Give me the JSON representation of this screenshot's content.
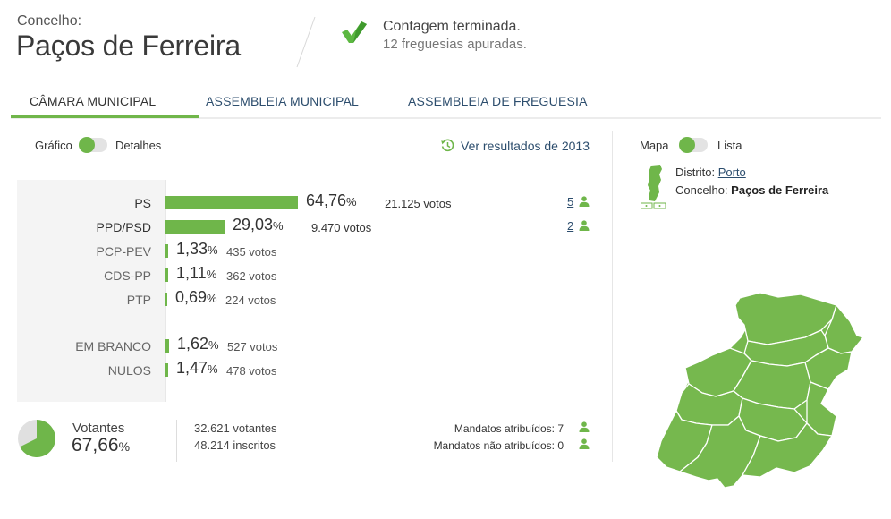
{
  "header": {
    "label": "Concelho:",
    "name": "Paços de Ferreira",
    "status_title": "Contagem terminada.",
    "status_sub": "12 freguesias apuradas."
  },
  "tabs": [
    {
      "label": "CÂMARA MUNICIPAL",
      "active": true
    },
    {
      "label": "ASSEMBLEIA MUNICIPAL",
      "active": false
    },
    {
      "label": "ASSEMBLEIA DE FREGUESIA",
      "active": false
    }
  ],
  "view_toggle": {
    "left": "Gráfico",
    "right": "Detalhes"
  },
  "prev_results": "Ver resultados de 2013",
  "results": [
    {
      "party": "PS",
      "pct": "64,76",
      "votes": "21.125 votos",
      "mandatos": "5",
      "share": 64.76
    },
    {
      "party": "PPD/PSD",
      "pct": "29,03",
      "votes": "9.470 votos",
      "mandatos": "2",
      "share": 29.03
    },
    {
      "party": "PCP-PEV",
      "pct": "1,33",
      "votes": "435 votos",
      "share": 1.33
    },
    {
      "party": "CDS-PP",
      "pct": "1,11",
      "votes": "362 votos",
      "share": 1.11
    },
    {
      "party": "PTP",
      "pct": "0,69",
      "votes": "224 votos",
      "share": 0.69
    },
    {
      "party": "EM BRANCO",
      "pct": "1,62",
      "votes": "527 votos",
      "share": 1.62
    },
    {
      "party": "NULOS",
      "pct": "1,47",
      "votes": "478 votos",
      "share": 1.47
    }
  ],
  "pct_unit": "%",
  "turnout": {
    "label": "Votantes",
    "pct": "67,66",
    "share": 67.66,
    "votantes": "32.621 votantes",
    "inscritos": "48.214 inscritos"
  },
  "mandatos": {
    "atribuidos": "Mandatos atribuídos: 7",
    "nao_atribuidos": "Mandatos não atribuídos: 0"
  },
  "map_toggle": {
    "left": "Mapa",
    "right": "Lista"
  },
  "location": {
    "distrito_label": "Distrito:",
    "distrito": "Porto",
    "concelho_label": "Concelho:",
    "concelho": "Paços de Ferreira"
  },
  "colors": {
    "accent": "#6fb64a",
    "map_fill": "#76b84e",
    "link": "#2c4d6d"
  }
}
